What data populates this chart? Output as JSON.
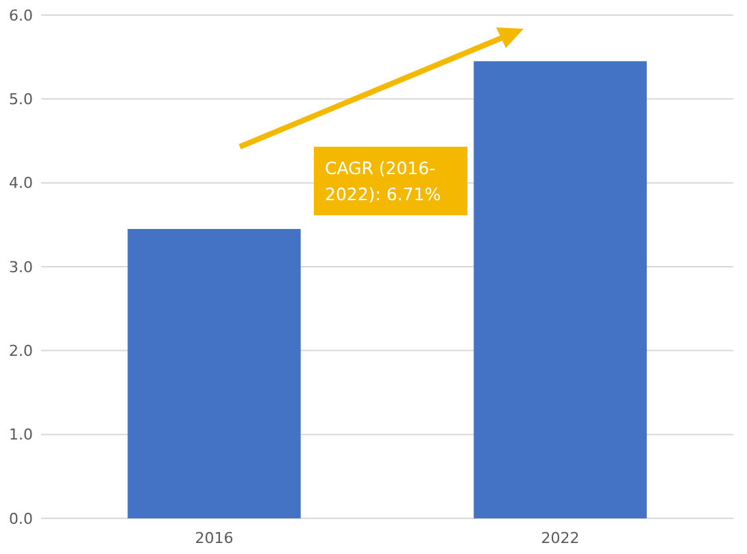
{
  "chart_data": {
    "type": "bar",
    "categories": [
      "2016",
      "2022"
    ],
    "values": [
      3.45,
      5.45
    ],
    "color": "#4472c4",
    "ylim": [
      0,
      6
    ],
    "yticks": [
      {
        "value": 0,
        "label": "0.0"
      },
      {
        "value": 1,
        "label": "1.0"
      },
      {
        "value": 2,
        "label": "2.0"
      },
      {
        "value": 3,
        "label": "3.0"
      },
      {
        "value": 4,
        "label": "4.0"
      },
      {
        "value": 5,
        "label": "5.0"
      },
      {
        "value": 6,
        "label": "6.0"
      }
    ],
    "grid": "y",
    "annotations": [
      "CAGR (2016-2022): 6.71%"
    ]
  }
}
